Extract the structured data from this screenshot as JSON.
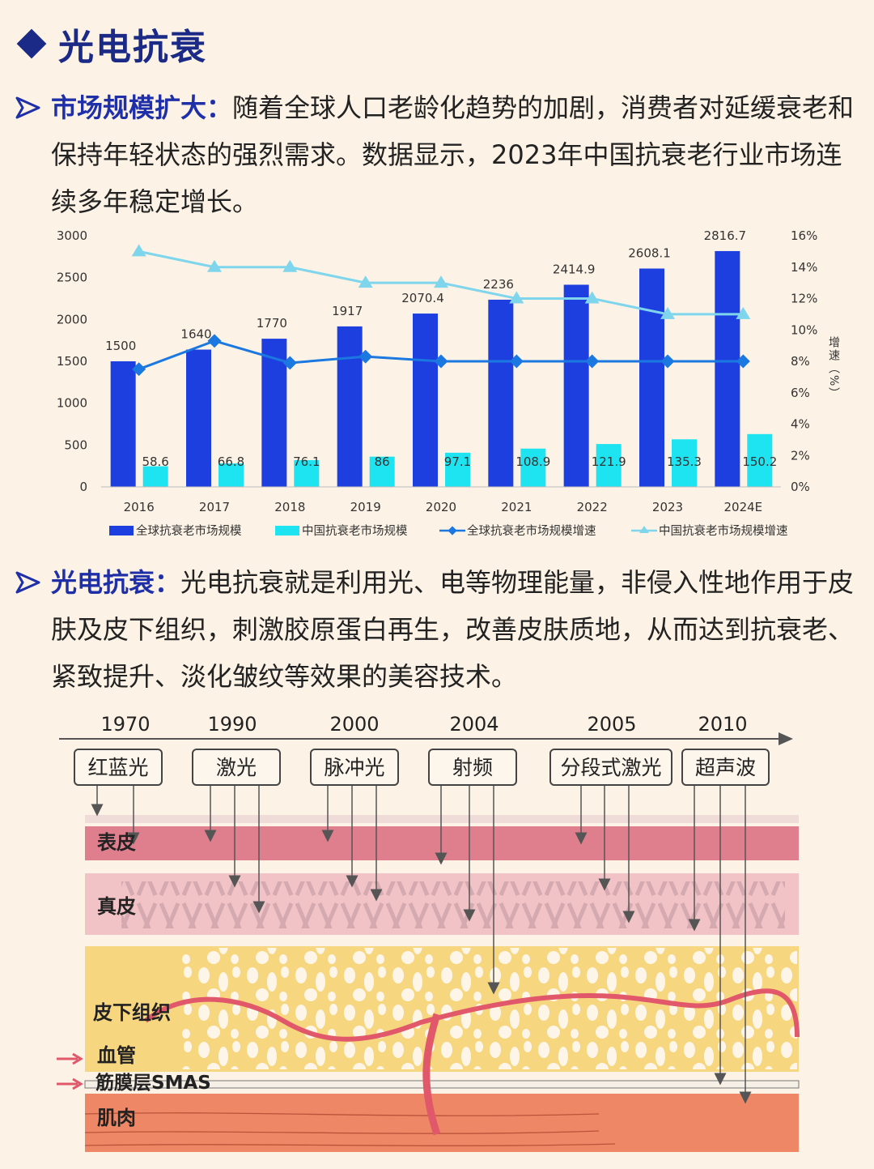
{
  "header": {
    "title": "光电抗衰"
  },
  "sections": [
    {
      "keyword": "市场规模扩大：",
      "text": "随着全球人口老龄化趋势的加剧，消费者对延缓衰老和保持年轻状态的强烈需求。数据显示，2023年中国抗衰老行业市场连续多年稳定增长。"
    },
    {
      "keyword": "光电抗衰：",
      "text": "光电抗衰就是利用光、电等物理能量，非侵入性地作用于皮肤及皮下组织，刺激胶原蛋白再生，改善皮肤质地，从而达到抗衰老、紧致提升、淡化皱纹等效果的美容技术。"
    }
  ],
  "chart_data": {
    "type": "bar",
    "categories": [
      "2016",
      "2017",
      "2018",
      "2019",
      "2020",
      "2021",
      "2022",
      "2023",
      "2024E"
    ],
    "ylim": [
      0,
      3000
    ],
    "yticks": [
      "0",
      "500",
      "1000",
      "1500",
      "2000",
      "2500",
      "3000"
    ],
    "y2lim": [
      0,
      16
    ],
    "y2ticks": [
      "0%",
      "2%",
      "4%",
      "6%",
      "8%",
      "10%",
      "12%",
      "14%",
      "16%"
    ],
    "y2label": "增速（%）",
    "series": [
      {
        "name": "全球抗衰老市场规模",
        "type": "bar",
        "color": "#1d3fe0",
        "values": [
          1500,
          1640,
          1770,
          1917,
          2070.4,
          2236,
          2414.9,
          2608.1,
          2816.7
        ],
        "labels": [
          "1500",
          "1640",
          "1770",
          "1917",
          "2070.4",
          "2236",
          "2414.9",
          "2608.1",
          "2816.7"
        ]
      },
      {
        "name": "中国抗衰老市场规模",
        "type": "bar",
        "color": "#1ee3f0",
        "values": [
          58.6,
          66.8,
          76.1,
          86,
          97.1,
          108.9,
          121.9,
          135.3,
          150.2
        ],
        "labels": [
          "58.6",
          "66.8",
          "76.1",
          "86",
          "97.1",
          "108.9",
          "121.9",
          "135.3",
          "150.2"
        ]
      },
      {
        "name": "全球抗衰老市场规模增速",
        "type": "line",
        "color": "#1a78e0",
        "axis": "right",
        "values": [
          7.5,
          9.3,
          7.9,
          8.3,
          8.0,
          8.0,
          8.0,
          8.0,
          8.0
        ]
      },
      {
        "name": "中国抗衰老市场规模增速",
        "type": "line",
        "color": "#7fd6ec",
        "axis": "right",
        "values": [
          15.0,
          14.0,
          14.0,
          13.0,
          13.0,
          12.0,
          12.0,
          11.0,
          11.0
        ]
      }
    ],
    "grid": false,
    "legend": "bottom"
  },
  "diagram": {
    "years": [
      "1970",
      "1990",
      "2000",
      "2004",
      "2005",
      "2010"
    ],
    "technologies": [
      "红蓝光",
      "激光",
      "脉冲光",
      "射频",
      "分段式激光",
      "超声波"
    ],
    "layers": [
      "表皮",
      "真皮",
      "皮下组织",
      "血管",
      "筋膜层SMAS",
      "肌肉"
    ]
  }
}
